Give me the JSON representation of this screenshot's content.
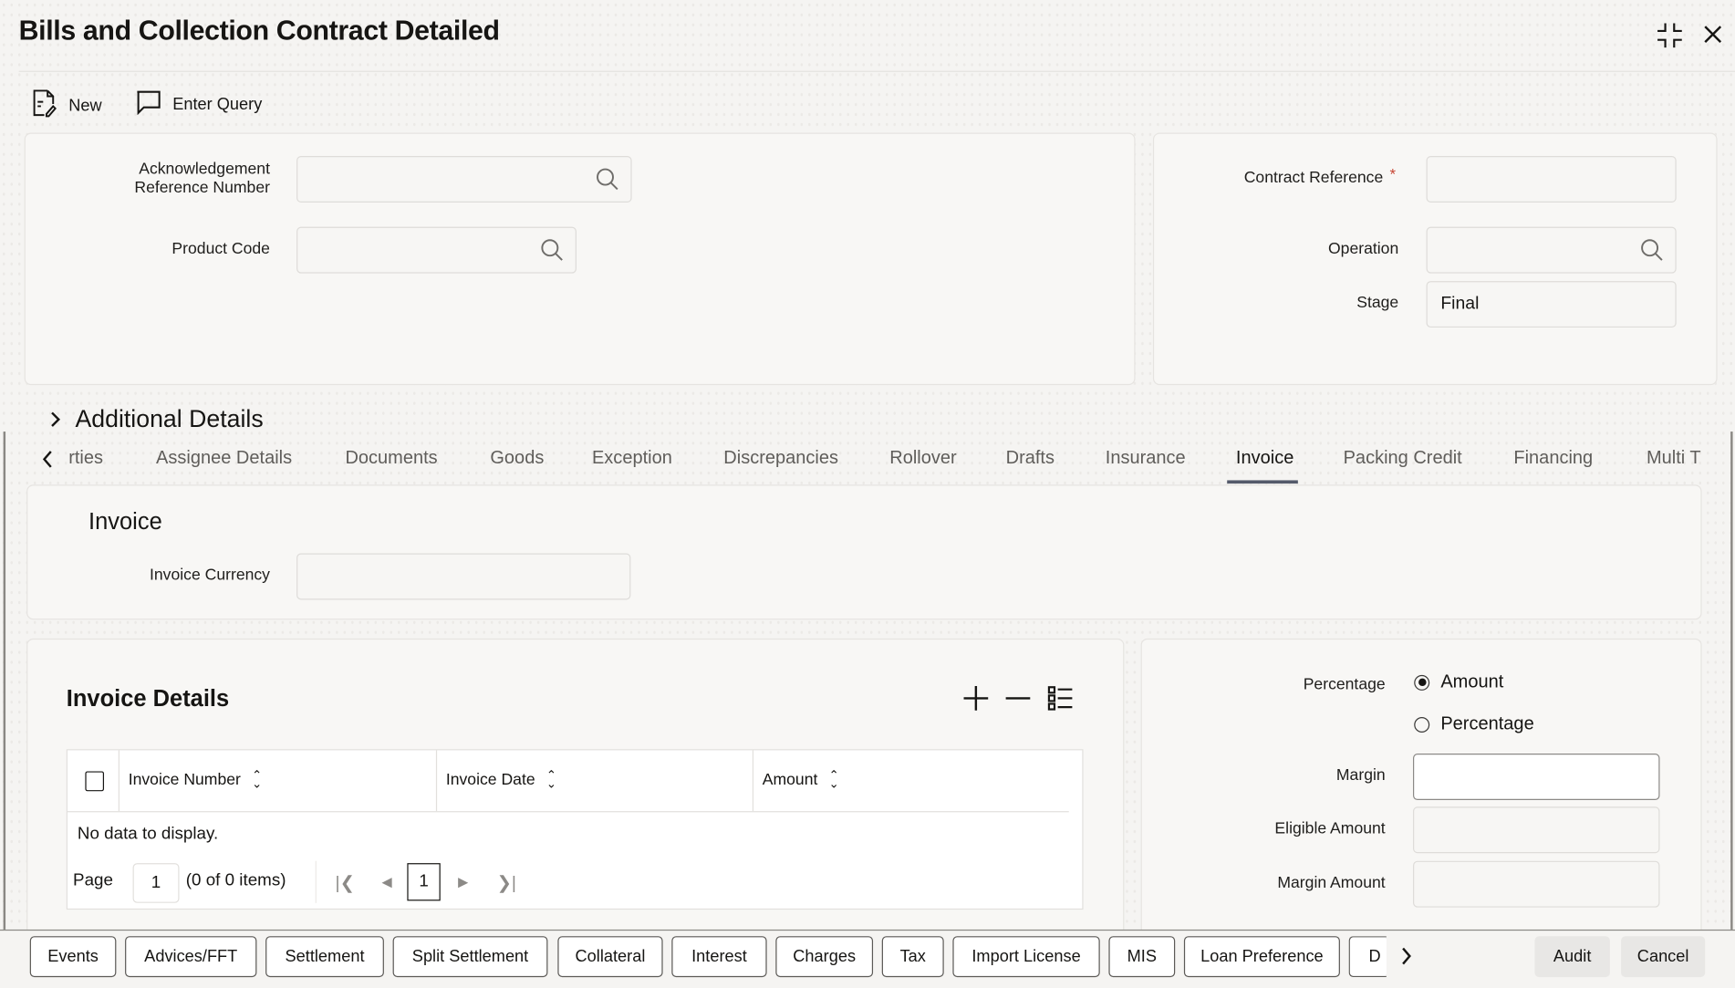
{
  "header": {
    "title": "Bills and Collection Contract Detailed"
  },
  "toolbar": {
    "new_label": "New",
    "enter_query_label": "Enter Query"
  },
  "main_form": {
    "ack_ref_label_1": "Acknowledgement",
    "ack_ref_label_2": "Reference Number",
    "ack_ref_value": "",
    "product_code_label": "Product Code",
    "product_code_value": "",
    "contract_reference_label": "Contract Reference",
    "contract_reference_required": "*",
    "contract_reference_value": "",
    "operation_label": "Operation",
    "operation_value": "",
    "stage_label": "Stage",
    "stage_value": "Final"
  },
  "additional_details": {
    "label": "Additional Details"
  },
  "tabs": [
    {
      "label": "rties"
    },
    {
      "label": "Assignee Details"
    },
    {
      "label": "Documents"
    },
    {
      "label": "Goods"
    },
    {
      "label": "Exception"
    },
    {
      "label": "Discrepancies"
    },
    {
      "label": "Rollover"
    },
    {
      "label": "Drafts"
    },
    {
      "label": "Insurance"
    },
    {
      "label": "Invoice",
      "active": true
    },
    {
      "label": "Packing Credit"
    },
    {
      "label": "Financing"
    },
    {
      "label": "Multi T"
    }
  ],
  "invoice": {
    "section_title": "Invoice",
    "currency_label": "Invoice Currency",
    "currency_value": ""
  },
  "invoice_details": {
    "title": "Invoice Details",
    "columns": [
      "Invoice Number",
      "Invoice Date",
      "Amount"
    ],
    "empty_text": "No data to display.",
    "page_label": "Page",
    "page_value": "1",
    "items_text": "(0 of 0 items)",
    "current_page": "1"
  },
  "margin_panel": {
    "percentage_label": "Percentage",
    "radio_options": [
      {
        "label": "Amount",
        "selected": true
      },
      {
        "label": "Percentage",
        "selected": false
      }
    ],
    "margin_label": "Margin",
    "margin_value": "",
    "eligible_amount_label": "Eligible Amount",
    "eligible_amount_value": "",
    "margin_amount_label": "Margin Amount",
    "margin_amount_value": ""
  },
  "footer": {
    "buttons": [
      "Events",
      "Advices/FFT",
      "Settlement",
      "Split Settlement",
      "Collateral",
      "Interest",
      "Charges",
      "Tax",
      "Import License",
      "MIS",
      "Loan Preference",
      "D"
    ],
    "audit_label": "Audit",
    "cancel_label": "Cancel"
  },
  "colors": {
    "required": "#c74634",
    "tab_indicator": "#545a6a"
  }
}
